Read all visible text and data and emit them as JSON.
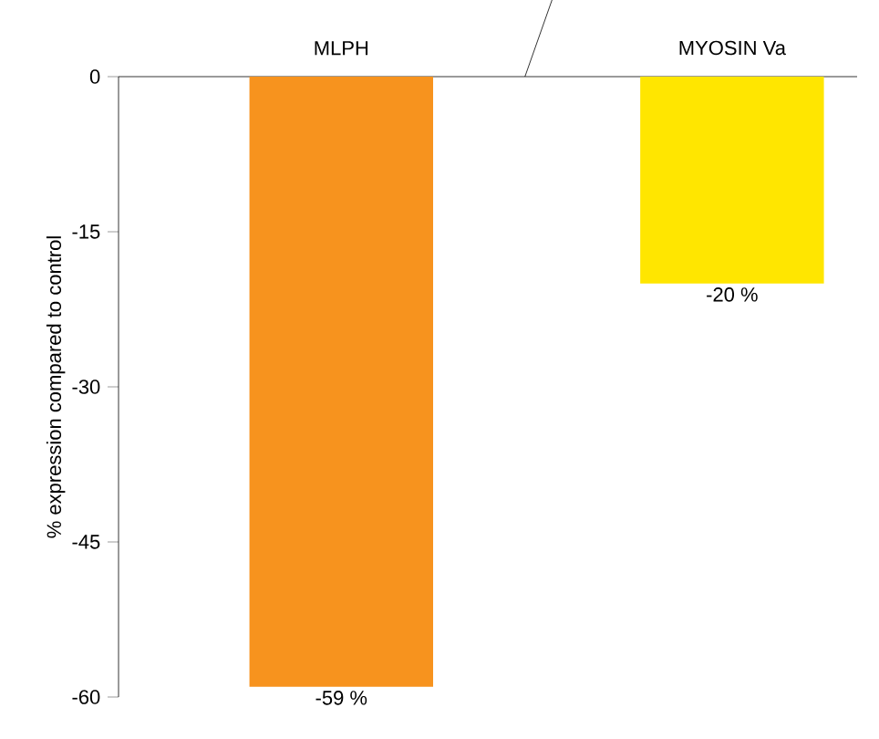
{
  "chart_data": {
    "type": "bar",
    "ylabel": "% expression compared to control",
    "categories": [
      "MLPH",
      "MYOSIN Va"
    ],
    "values": [
      -59,
      -20
    ],
    "colors": [
      "#f7931e",
      "#ffe600"
    ],
    "value_labels": [
      "-59 %",
      "-20 %"
    ],
    "ylim": [
      -60,
      0
    ],
    "yticks": [
      -60,
      -45,
      -30,
      -15,
      0
    ],
    "grid": false
  }
}
